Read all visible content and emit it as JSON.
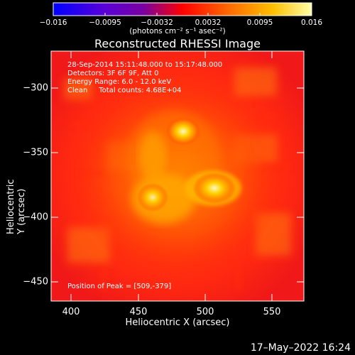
{
  "colorbar": {
    "ticks": [
      "−0.016",
      "−0.0095",
      "−0.0032",
      "0.0032",
      "0.0095",
      "0.016"
    ],
    "unit_text": "(photons cm⁻² s⁻¹ asec⁻²)"
  },
  "title": "Reconstructed RHESSI Image",
  "info": {
    "line1": "28-Sep-2014 15:11:48.000 to 15:17:48.000",
    "line2": "Detectors: 3F 6F 9F, Att 0",
    "line3": "Energy Range: 6.0 - 12.0 keV",
    "line4": "Clean     Total counts: 4.68E+04"
  },
  "peak_text": "Position of Peak = [509,-379]",
  "axes": {
    "xlabel": "Heliocentric X (arcsec)",
    "ylabel": "Heliocentric Y (arcsec)",
    "xticks": [
      "400",
      "450",
      "500",
      "550"
    ],
    "yticks": [
      "−300",
      "−350",
      "−400",
      "−450"
    ]
  },
  "footer_date": "17–May–2022 16:24",
  "colors": {
    "background": "#000000",
    "frame": "#ffffff"
  }
}
